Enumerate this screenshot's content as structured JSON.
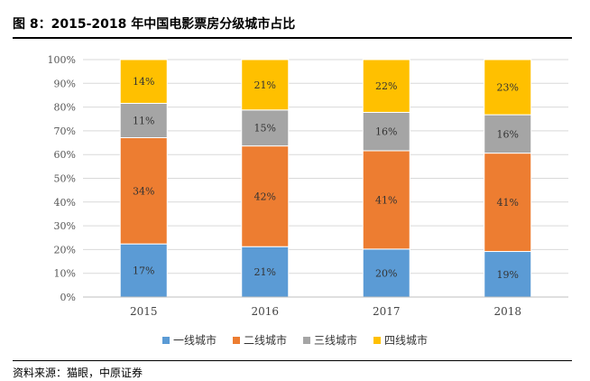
{
  "figure": {
    "title": "图 8：2015-2018 年中国电影票房分级城市占比",
    "source": "资料来源：猫眼，中原证券"
  },
  "chart_data": {
    "type": "bar",
    "stacked": true,
    "percent": true,
    "categories": [
      "2015",
      "2016",
      "2017",
      "2018"
    ],
    "series": [
      {
        "name": "一线城市",
        "color": "#5B9BD5",
        "values": [
          17,
          21,
          20,
          19
        ],
        "labels": [
          "17%",
          "21%",
          "20%",
          "19%"
        ]
      },
      {
        "name": "二线城市",
        "color": "#ED7D31",
        "values": [
          34,
          42,
          41,
          41
        ],
        "labels": [
          "34%",
          "42%",
          "41%",
          "41%"
        ]
      },
      {
        "name": "三线城市",
        "color": "#A5A5A5",
        "values": [
          11,
          15,
          16,
          16
        ],
        "labels": [
          "11%",
          "15%",
          "16%",
          "16%"
        ]
      },
      {
        "name": "四线城市",
        "color": "#FFC000",
        "values": [
          14,
          21,
          22,
          23
        ],
        "labels": [
          "14%",
          "21%",
          "22%",
          "23%"
        ]
      }
    ],
    "ylim": [
      0,
      100
    ],
    "yticks": [
      "0%",
      "10%",
      "20%",
      "30%",
      "40%",
      "50%",
      "60%",
      "70%",
      "80%",
      "90%",
      "100%"
    ],
    "grid": true,
    "legend_position": "bottom"
  }
}
